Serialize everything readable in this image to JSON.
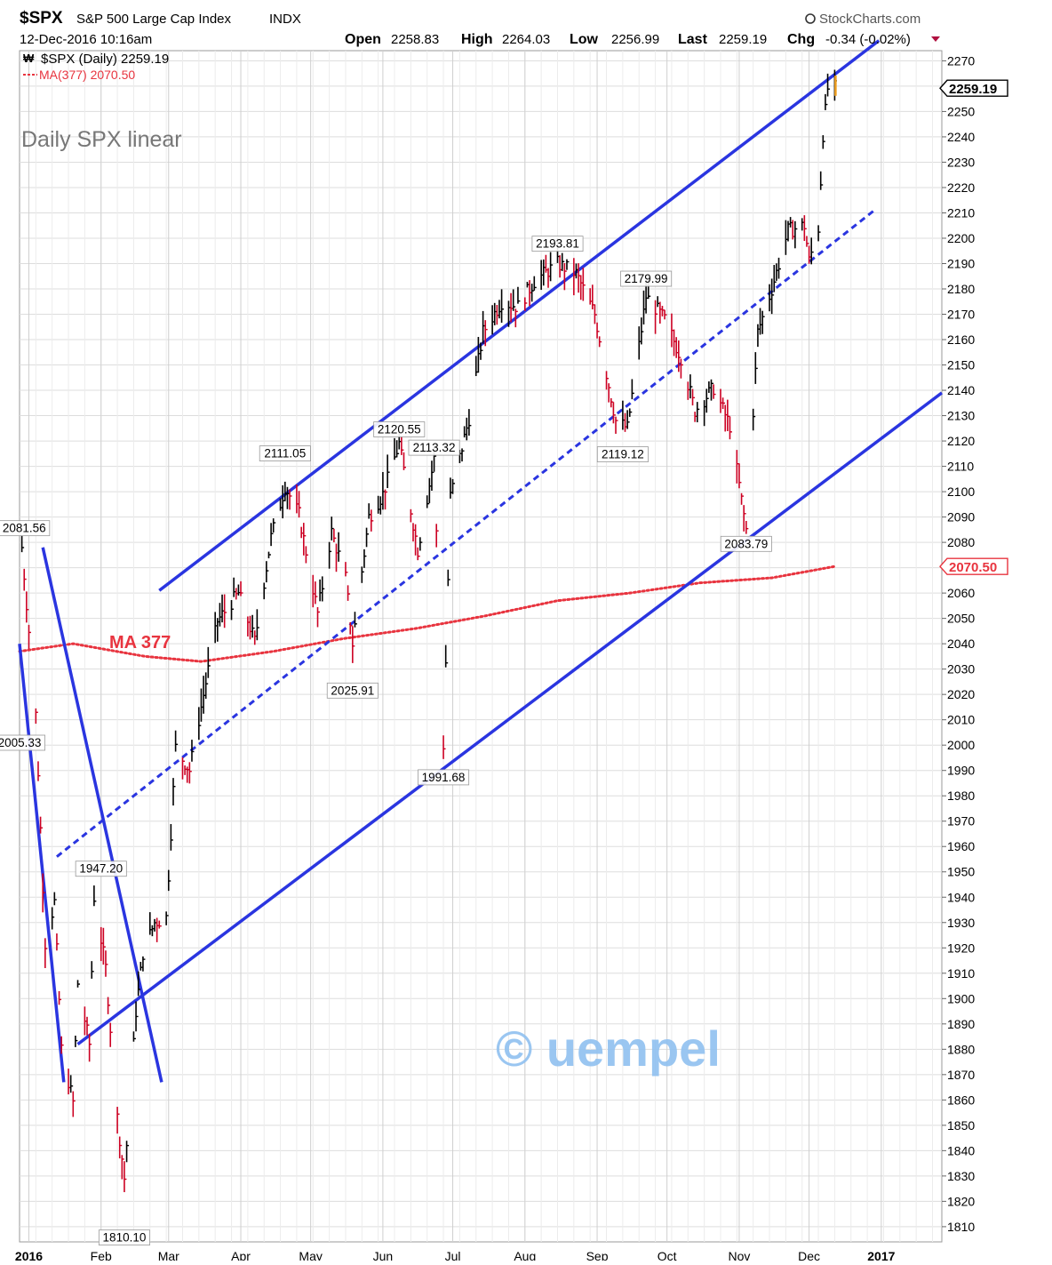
{
  "header": {
    "symbol": "$SPX",
    "name": "S&P 500 Large Cap Index",
    "exchange": "INDX",
    "datetime": "12-Dec-2016 10:16am",
    "source": "StockCharts.com",
    "open_label": "Open",
    "open_value": "2258.83",
    "high_label": "High",
    "high_value": "2264.03",
    "low_label": "Low",
    "low_value": "2256.99",
    "last_label": "Last",
    "last_value": "2259.19",
    "chg_label": "Chg",
    "chg_value": "-0.34 (-0.02%)"
  },
  "legend": {
    "price_label": "$SPX (Daily) 2259.19",
    "ma_label": "MA(377) 2070.50"
  },
  "annotations": {
    "title_note": "Daily SPX linear",
    "ma_note": "MA 377",
    "watermark": "© uempel"
  },
  "colors": {
    "up": "#000000",
    "down": "#cc0022",
    "ma": "#e8343f",
    "trendline": "#2a35e0",
    "grid": "#dddddd",
    "watermark": "#8fc0f0"
  },
  "chart_data": {
    "type": "line",
    "title": "$SPX S&P 500 Large Cap Index INDX",
    "scale": "linear",
    "ylim": [
      1804,
      2274
    ],
    "xlim": [
      "2015-12-28",
      "2017-01-27"
    ],
    "y_ticks": [
      1810,
      1820,
      1830,
      1840,
      1850,
      1860,
      1870,
      1880,
      1890,
      1900,
      1910,
      1920,
      1930,
      1940,
      1950,
      1960,
      1970,
      1980,
      1990,
      2000,
      2010,
      2020,
      2030,
      2040,
      2050,
      2060,
      2070,
      2080,
      2090,
      2100,
      2110,
      2120,
      2130,
      2140,
      2150,
      2160,
      2170,
      2180,
      2190,
      2200,
      2210,
      2220,
      2230,
      2240,
      2250,
      2260,
      2270
    ],
    "x_ticks": [
      {
        "label": "2016",
        "date": "2016-01-01"
      },
      {
        "label": "Feb",
        "date": "2016-02-01"
      },
      {
        "label": "Mar",
        "date": "2016-03-01"
      },
      {
        "label": "Apr",
        "date": "2016-04-01"
      },
      {
        "label": "May",
        "date": "2016-05-01"
      },
      {
        "label": "Jun",
        "date": "2016-06-01"
      },
      {
        "label": "Jul",
        "date": "2016-07-01"
      },
      {
        "label": "Aug",
        "date": "2016-08-01"
      },
      {
        "label": "Sep",
        "date": "2016-09-01"
      },
      {
        "label": "Oct",
        "date": "2016-10-01"
      },
      {
        "label": "Nov",
        "date": "2016-11-01"
      },
      {
        "label": "Dec",
        "date": "2016-12-01"
      },
      {
        "label": "2017",
        "date": "2017-01-01"
      }
    ],
    "grid": true,
    "series": [
      {
        "name": "$SPX (Daily)",
        "style": "hlc-bars",
        "points": [
          {
            "x": "2015-12-29",
            "y": 2078
          },
          {
            "x": "2016-01-04",
            "y": 2012
          },
          {
            "x": "2016-01-08",
            "y": 1922
          },
          {
            "x": "2016-01-12",
            "y": 1938
          },
          {
            "x": "2016-01-15",
            "y": 1880
          },
          {
            "x": "2016-01-20",
            "y": 1859
          },
          {
            "x": "2016-01-22",
            "y": 1906
          },
          {
            "x": "2016-01-27",
            "y": 1882
          },
          {
            "x": "2016-01-29",
            "y": 1940
          },
          {
            "x": "2016-02-03",
            "y": 1912
          },
          {
            "x": "2016-02-08",
            "y": 1853
          },
          {
            "x": "2016-02-11",
            "y": 1829
          },
          {
            "x": "2016-02-16",
            "y": 1895
          },
          {
            "x": "2016-02-19",
            "y": 1918
          },
          {
            "x": "2016-02-24",
            "y": 1930
          },
          {
            "x": "2016-02-29",
            "y": 1932
          },
          {
            "x": "2016-03-04",
            "y": 1999
          },
          {
            "x": "2016-03-10",
            "y": 1990
          },
          {
            "x": "2016-03-15",
            "y": 2015
          },
          {
            "x": "2016-03-22",
            "y": 2049
          },
          {
            "x": "2016-03-31",
            "y": 2060
          },
          {
            "x": "2016-04-07",
            "y": 2041
          },
          {
            "x": "2016-04-14",
            "y": 2082
          },
          {
            "x": "2016-04-20",
            "y": 2102
          },
          {
            "x": "2016-04-26",
            "y": 2091
          },
          {
            "x": "2016-05-04",
            "y": 2052
          },
          {
            "x": "2016-05-10",
            "y": 2084
          },
          {
            "x": "2016-05-16",
            "y": 2066
          },
          {
            "x": "2016-05-19",
            "y": 2040
          },
          {
            "x": "2016-05-26",
            "y": 2090
          },
          {
            "x": "2016-06-01",
            "y": 2099
          },
          {
            "x": "2016-06-08",
            "y": 2119
          },
          {
            "x": "2016-06-16",
            "y": 2077
          },
          {
            "x": "2016-06-23",
            "y": 2113
          },
          {
            "x": "2016-06-27",
            "y": 2000
          },
          {
            "x": "2016-06-30",
            "y": 2098
          },
          {
            "x": "2016-07-08",
            "y": 2129
          },
          {
            "x": "2016-07-14",
            "y": 2163
          },
          {
            "x": "2016-07-22",
            "y": 2175
          },
          {
            "x": "2016-07-29",
            "y": 2173
          },
          {
            "x": "2016-08-05",
            "y": 2183
          },
          {
            "x": "2016-08-15",
            "y": 2190
          },
          {
            "x": "2016-08-23",
            "y": 2186
          },
          {
            "x": "2016-08-31",
            "y": 2170
          },
          {
            "x": "2016-09-09",
            "y": 2128
          },
          {
            "x": "2016-09-14",
            "y": 2125
          },
          {
            "x": "2016-09-22",
            "y": 2177
          },
          {
            "x": "2016-09-30",
            "y": 2168
          },
          {
            "x": "2016-10-07",
            "y": 2153
          },
          {
            "x": "2016-10-13",
            "y": 2132
          },
          {
            "x": "2016-10-21",
            "y": 2141
          },
          {
            "x": "2016-10-28",
            "y": 2126
          },
          {
            "x": "2016-11-04",
            "y": 2085
          },
          {
            "x": "2016-11-09",
            "y": 2163
          },
          {
            "x": "2016-11-15",
            "y": 2180
          },
          {
            "x": "2016-11-22",
            "y": 2203
          },
          {
            "x": "2016-11-29",
            "y": 2205
          },
          {
            "x": "2016-12-01",
            "y": 2191
          },
          {
            "x": "2016-12-05",
            "y": 2204
          },
          {
            "x": "2016-12-07",
            "y": 2241
          },
          {
            "x": "2016-12-09",
            "y": 2259
          },
          {
            "x": "2016-12-12",
            "y": 2259.19
          }
        ]
      },
      {
        "name": "MA(377)",
        "style": "dotted",
        "points": [
          {
            "x": "2015-12-28",
            "y": 2037
          },
          {
            "x": "2016-01-20",
            "y": 2040
          },
          {
            "x": "2016-02-20",
            "y": 2035
          },
          {
            "x": "2016-03-15",
            "y": 2033
          },
          {
            "x": "2016-04-15",
            "y": 2037
          },
          {
            "x": "2016-05-15",
            "y": 2042
          },
          {
            "x": "2016-06-15",
            "y": 2046
          },
          {
            "x": "2016-07-15",
            "y": 2051
          },
          {
            "x": "2016-08-15",
            "y": 2057
          },
          {
            "x": "2016-09-15",
            "y": 2060
          },
          {
            "x": "2016-10-15",
            "y": 2064
          },
          {
            "x": "2016-11-15",
            "y": 2066
          },
          {
            "x": "2016-12-12",
            "y": 2070.5
          }
        ]
      }
    ],
    "trendlines": [
      {
        "style": "solid",
        "points": [
          {
            "x": "2016-02-26",
            "y": 2061
          },
          {
            "x": "2016-12-31",
            "y": 2278
          }
        ]
      },
      {
        "style": "dashed",
        "points": [
          {
            "x": "2016-01-13",
            "y": 1956
          },
          {
            "x": "2016-12-29",
            "y": 2211
          }
        ]
      },
      {
        "style": "solid",
        "points": [
          {
            "x": "2016-01-22",
            "y": 1882
          },
          {
            "x": "2017-01-27",
            "y": 2139
          }
        ]
      },
      {
        "style": "solid",
        "points": [
          {
            "x": "2015-12-28",
            "y": 2040
          },
          {
            "x": "2016-01-16",
            "y": 1867
          }
        ]
      },
      {
        "style": "solid",
        "points": [
          {
            "x": "2016-01-07",
            "y": 2078
          },
          {
            "x": "2016-02-27",
            "y": 1867
          }
        ]
      }
    ],
    "point_labels": [
      {
        "text": "2081.56",
        "x": "2015-12-30",
        "y": 2081.56,
        "pos": "above"
      },
      {
        "text": "2005.33",
        "x": "2015-12-28",
        "y": 2005.33,
        "pos": "below"
      },
      {
        "text": "1947.20",
        "x": "2016-02-01",
        "y": 1947.2,
        "pos": "above"
      },
      {
        "text": "1810.10",
        "x": "2016-02-11",
        "y": 1810.1,
        "pos": "below"
      },
      {
        "text": "2111.05",
        "x": "2016-04-20",
        "y": 2111.05,
        "pos": "above"
      },
      {
        "text": "2025.91",
        "x": "2016-05-19",
        "y": 2025.91,
        "pos": "below"
      },
      {
        "text": "2120.55",
        "x": "2016-06-08",
        "y": 2120.55,
        "pos": "above"
      },
      {
        "text": "2113.32",
        "x": "2016-06-23",
        "y": 2113.32,
        "pos": "above"
      },
      {
        "text": "1991.68",
        "x": "2016-06-27",
        "y": 1991.68,
        "pos": "below"
      },
      {
        "text": "2193.81",
        "x": "2016-08-15",
        "y": 2193.81,
        "pos": "above"
      },
      {
        "text": "2179.99",
        "x": "2016-09-22",
        "y": 2179.99,
        "pos": "above"
      },
      {
        "text": "2119.12",
        "x": "2016-09-12",
        "y": 2119.12,
        "pos": "below"
      },
      {
        "text": "2083.79",
        "x": "2016-11-04",
        "y": 2083.79,
        "pos": "below"
      }
    ],
    "last_value_tags": [
      {
        "text": "2259.19",
        "y": 2259.19,
        "color": "#000000"
      },
      {
        "text": "2070.50",
        "y": 2070.5,
        "color": "#e8343f"
      }
    ]
  }
}
